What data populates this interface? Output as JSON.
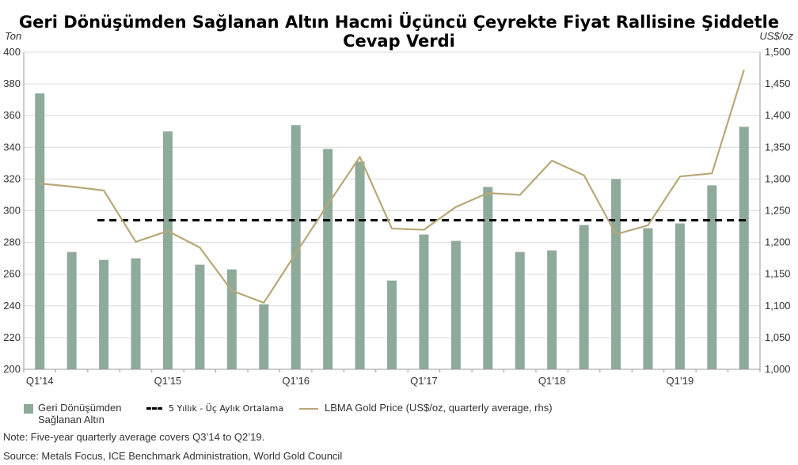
{
  "title": "Geri Dönüşümden Sağlanan Altın Hacmi Üçüncü Çeyrekte Fiyat Rallisine Şiddetle Cevap Verdi",
  "left_unit": "Ton",
  "right_unit": "US$/oz",
  "colors": {
    "bars": "#8faa99",
    "price_line": "#b8a878",
    "average_line": "#000000"
  },
  "chart_data": {
    "type": "bar",
    "categories": [
      "Q1'14",
      "Q2'14",
      "Q3'14",
      "Q4'14",
      "Q1'15",
      "Q2'15",
      "Q3'15",
      "Q4'15",
      "Q1'16",
      "Q2'16",
      "Q3'16",
      "Q4'16",
      "Q1'17",
      "Q2'17",
      "Q3'17",
      "Q4'17",
      "Q1'18",
      "Q2'18",
      "Q3'18",
      "Q4'18",
      "Q1'19",
      "Q2'19",
      "Q3'19"
    ],
    "x_tick_labels": [
      {
        "index": 0,
        "label": "Q1’14"
      },
      {
        "index": 4,
        "label": "Q1’15"
      },
      {
        "index": 8,
        "label": "Q1’16"
      },
      {
        "index": 12,
        "label": "Q1’17"
      },
      {
        "index": 16,
        "label": "Q1’18"
      },
      {
        "index": 20,
        "label": "Q1’19"
      }
    ],
    "series": [
      {
        "name": "Geri Dönüşümden Sağlanan Altın",
        "axis": "left",
        "type": "bar",
        "values": [
          374,
          274,
          269,
          270,
          350,
          266,
          263,
          241,
          354,
          339,
          331,
          256,
          285,
          281,
          315,
          274,
          275,
          291,
          320,
          289,
          292,
          316,
          353
        ]
      },
      {
        "name": "5 Yıllık - Üç Aylık Ortalama",
        "axis": "left",
        "type": "line",
        "style": "dashed",
        "value": 294,
        "start_index": 2,
        "end_index": 22
      },
      {
        "name": "LBMA Gold Price (US$/oz, quarterly average, rhs)",
        "axis": "right",
        "type": "line",
        "values": [
          1293,
          1288,
          1282,
          1201,
          1218,
          1192,
          1124,
          1105,
          1183,
          1260,
          1335,
          1222,
          1220,
          1256,
          1278,
          1275,
          1329,
          1306,
          1213,
          1227,
          1304,
          1309,
          1472
        ]
      }
    ],
    "y_left": {
      "min": 200,
      "max": 400,
      "ticks": [
        200,
        220,
        240,
        260,
        280,
        300,
        320,
        340,
        360,
        380,
        400
      ]
    },
    "y_right": {
      "min": 1000,
      "max": 1500,
      "ticks": [
        "1,000",
        "1,050",
        "1,100",
        "1,150",
        "1,200",
        "1,250",
        "1,300",
        "1,350",
        "1,400",
        "1,450",
        "1,500"
      ]
    },
    "grid": true
  },
  "legend": {
    "bars_line1": "Geri Dönüşümden",
    "bars_line2": "Sağlanan Altın",
    "average": "5 Yıllık - Üç Aylık Ortalama",
    "price": "LBMA Gold Price (US$/oz, quarterly average, rhs)"
  },
  "note": "Note: Five-year quarterly average covers Q3’14 to Q2’19.",
  "source": "Source: Metals Focus, ICE Benchmark Administration, World Gold Council"
}
